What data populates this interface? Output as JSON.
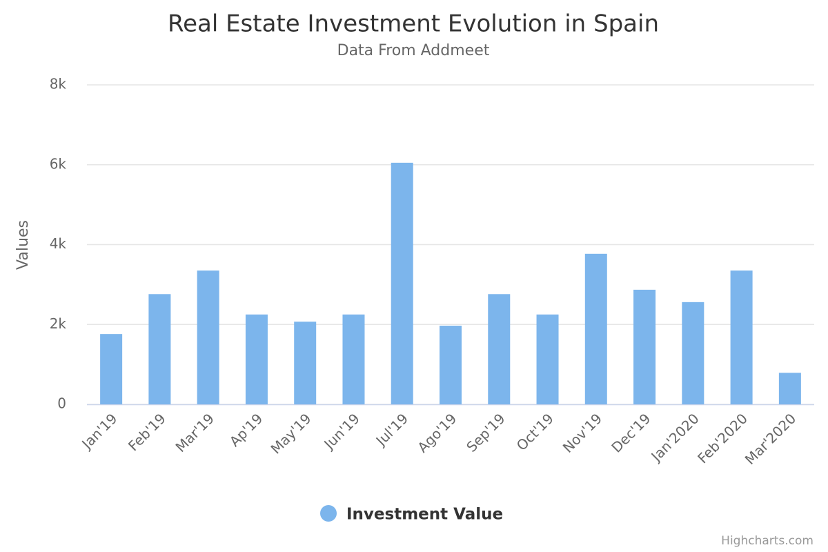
{
  "chart_data": {
    "type": "bar",
    "title": "Real Estate Investment Evolution in Spain",
    "subtitle": "Data From Addmeet",
    "y_label": "Values",
    "credits": "Highcharts.com",
    "categories": [
      "Jan'19",
      "Feb'19",
      "Mar'19",
      "Ap'19",
      "May'19",
      "Jun'19",
      "Jul'19",
      "Ago'19",
      "Sep'19",
      "Oct'19",
      "Nov'19",
      "Dec'19",
      "Jan'2020",
      "Feb'2020",
      "Mar'2020"
    ],
    "series": [
      {
        "name": "Investment Value",
        "color": "#7cb5ec",
        "values": [
          1760,
          2760,
          3350,
          2250,
          2070,
          2250,
          6050,
          1970,
          2760,
          2250,
          3770,
          2870,
          2560,
          3350,
          790
        ]
      }
    ],
    "ylim": [
      0,
      8000
    ],
    "yticks": [
      0,
      {
        "value": 2000,
        "label": "2k"
      },
      {
        "value": 4000,
        "label": "4k"
      },
      {
        "value": 6000,
        "label": "6k"
      },
      {
        "value": 8000,
        "label": "8k"
      }
    ],
    "grid": true,
    "legend": "bottom"
  }
}
